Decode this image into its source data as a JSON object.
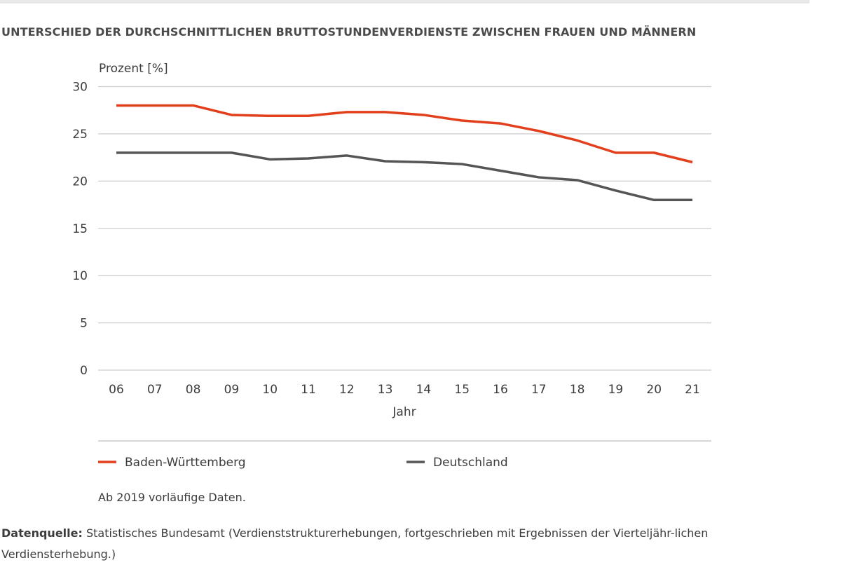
{
  "title": "UNTERSCHIED DER DURCHSCHNITTLICHEN BRUTTOSTUNDENVERDIENSTE ZWISCHEN FRAUEN UND MÄNNERN",
  "note": "Ab 2019 vorläufige Daten.",
  "source": {
    "label": "Datenquelle:",
    "text": " Statistisches Bundesamt (Verdienststrukturerhebungen, fortgeschrieben mit Ergebnissen der Vierteljähr-lichen Verdiensterhebung.)"
  },
  "chart_data": {
    "type": "line",
    "ylabel": "Prozent [%]",
    "xlabel": "Jahr",
    "ylim": [
      0,
      30
    ],
    "yticks": [
      "0",
      "5",
      "10",
      "15",
      "20",
      "25",
      "30"
    ],
    "grid": true,
    "legend_position": "bottom",
    "categories": [
      "06",
      "07",
      "08",
      "09",
      "10",
      "11",
      "12",
      "13",
      "14",
      "15",
      "16",
      "17",
      "18",
      "19",
      "20",
      "21"
    ],
    "series": [
      {
        "name": "Baden-Württemberg",
        "color": "#e2401c",
        "values": [
          28,
          28,
          28,
          27,
          26.9,
          26.9,
          27.3,
          27.3,
          27,
          26.4,
          26.1,
          25.3,
          24.3,
          23,
          23,
          22
        ]
      },
      {
        "name": "Deutschland",
        "color": "#555555",
        "values": [
          23,
          23,
          23,
          23,
          22.3,
          22.4,
          22.7,
          22.1,
          22,
          21.8,
          21.1,
          20.4,
          20.1,
          19,
          18,
          18
        ]
      }
    ]
  }
}
